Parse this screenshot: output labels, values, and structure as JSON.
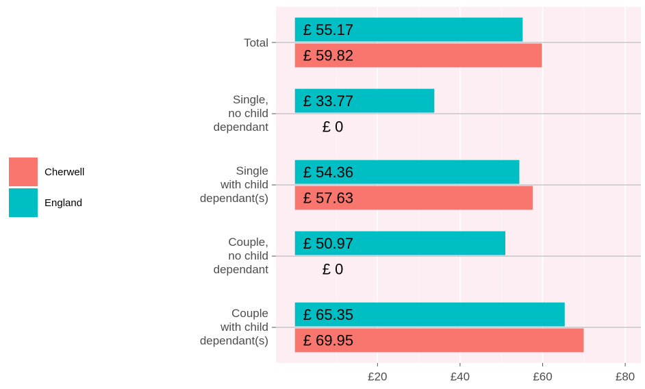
{
  "chart_data": {
    "type": "bar",
    "orientation": "horizontal",
    "categories": [
      "Total",
      "Single,\nno child\ndependant",
      "Single\nwith child\ndependant(s)",
      "Couple,\nno child\ndependant",
      "Couple\nwith child\ndependant(s)"
    ],
    "series": [
      {
        "name": "Cherwell",
        "color": "#f8766d",
        "values": [
          59.82,
          0,
          57.63,
          0,
          69.95
        ],
        "value_labels": [
          "£ 59.82",
          "£ 0",
          "£ 57.63",
          "£ 0",
          "£ 69.95"
        ]
      },
      {
        "name": "England",
        "color": "#00bfc4",
        "values": [
          55.17,
          33.77,
          54.36,
          50.97,
          65.35
        ],
        "value_labels": [
          "£ 55.17",
          "£ 33.77",
          "£ 54.36",
          "£ 50.97",
          "£ 65.35"
        ]
      }
    ],
    "xlim": [
      -4.6,
      83.8
    ],
    "xticks": [
      {
        "value": 20,
        "label": "£20"
      },
      {
        "value": 40,
        "label": "£40"
      },
      {
        "value": 60,
        "label": "£60"
      },
      {
        "value": 80,
        "label": "£80"
      }
    ],
    "x_minor_ticks": [
      10,
      30,
      50,
      70
    ],
    "grid": true,
    "legend": "left"
  }
}
